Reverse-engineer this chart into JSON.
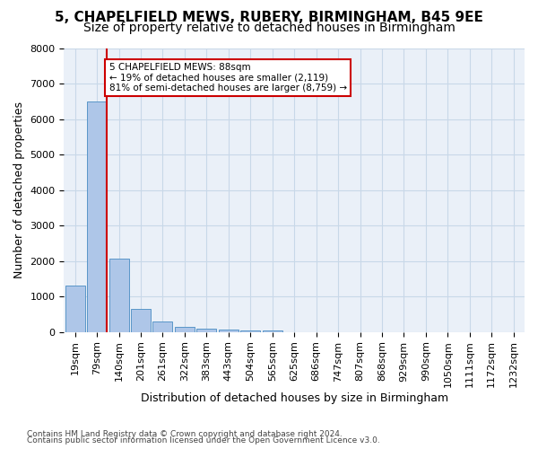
{
  "title1": "5, CHAPELFIELD MEWS, RUBERY, BIRMINGHAM, B45 9EE",
  "title2": "Size of property relative to detached houses in Birmingham",
  "xlabel": "Distribution of detached houses by size in Birmingham",
  "ylabel": "Number of detached properties",
  "footnote1": "Contains HM Land Registry data © Crown copyright and database right 2024.",
  "footnote2": "Contains public sector information licensed under the Open Government Licence v3.0.",
  "bar_labels": [
    "19sqm",
    "79sqm",
    "140sqm",
    "201sqm",
    "261sqm",
    "322sqm",
    "383sqm",
    "443sqm",
    "504sqm",
    "565sqm",
    "625sqm",
    "686sqm",
    "747sqm",
    "807sqm",
    "868sqm",
    "929sqm",
    "990sqm",
    "1050sqm",
    "1111sqm",
    "1172sqm",
    "1232sqm"
  ],
  "bar_values": [
    1300,
    6500,
    2080,
    660,
    290,
    150,
    100,
    60,
    55,
    50,
    0,
    0,
    0,
    0,
    0,
    0,
    0,
    0,
    0,
    0,
    0
  ],
  "bar_color": "#aec6e8",
  "bar_edge_color": "#5a96c8",
  "property_line_x": 1,
  "property_sqm": 88,
  "annotation_text": "5 CHAPELFIELD MEWS: 88sqm\n← 19% of detached houses are smaller (2,119)\n81% of semi-detached houses are larger (8,759) →",
  "annotation_box_color": "#ffffff",
  "annotation_box_edge": "#cc0000",
  "vline_color": "#cc0000",
  "ylim": [
    0,
    8000
  ],
  "yticks": [
    0,
    1000,
    2000,
    3000,
    4000,
    5000,
    6000,
    7000,
    8000
  ],
  "grid_color": "#c8d8e8",
  "bg_color": "#eaf0f8",
  "title_fontsize": 11,
  "subtitle_fontsize": 10,
  "tick_fontsize": 8,
  "ylabel_fontsize": 9,
  "xlabel_fontsize": 9
}
